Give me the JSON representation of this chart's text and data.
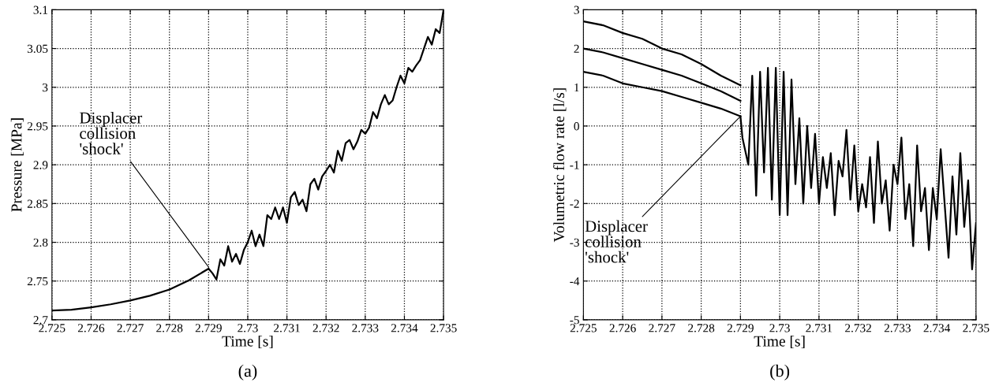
{
  "chart_data": [
    {
      "type": "line",
      "xlabel": "Time [s]",
      "ylabel": "Pressure [MPa]",
      "xlim": [
        2.725,
        2.735
      ],
      "ylim": [
        2.7,
        3.1
      ],
      "xticks": [
        2.725,
        2.726,
        2.727,
        2.728,
        2.729,
        2.73,
        2.731,
        2.732,
        2.733,
        2.734,
        2.735
      ],
      "yticks": [
        2.7,
        2.75,
        2.8,
        2.85,
        2.9,
        2.95,
        3,
        3.05,
        3.1
      ],
      "grid": true,
      "line_style": "solid",
      "annotations": [
        {
          "text": "Displacer\ncollision\n'shock'",
          "x": 2.729,
          "y": 2.768
        },
        "(a)"
      ],
      "series": [
        {
          "color": "#000000",
          "x": [
            2.725,
            2.7255,
            2.726,
            2.7265,
            2.727,
            2.7275,
            2.728,
            2.7285,
            2.729,
            2.7291,
            2.7292,
            2.7293,
            2.7294,
            2.7295,
            2.7296,
            2.7297,
            2.7298,
            2.7299,
            2.73,
            2.7301,
            2.7302,
            2.7303,
            2.7304,
            2.7305,
            2.7306,
            2.7307,
            2.7308,
            2.7309,
            2.731,
            2.7311,
            2.7312,
            2.7313,
            2.7314,
            2.7315,
            2.7316,
            2.7317,
            2.7318,
            2.7319,
            2.732,
            2.7321,
            2.7322,
            2.7323,
            2.7324,
            2.7325,
            2.7326,
            2.7327,
            2.7328,
            2.7329,
            2.733,
            2.7331,
            2.7332,
            2.7333,
            2.7334,
            2.7335,
            2.7336,
            2.7337,
            2.7338,
            2.7339,
            2.734,
            2.7341,
            2.7342,
            2.7343,
            2.7344,
            2.7345,
            2.7346,
            2.7347,
            2.7348,
            2.7349,
            2.735
          ],
          "values": [
            2.712,
            2.713,
            2.716,
            2.72,
            2.725,
            2.731,
            2.739,
            2.751,
            2.766,
            2.76,
            2.752,
            2.778,
            2.77,
            2.795,
            2.775,
            2.785,
            2.772,
            2.79,
            2.8,
            2.815,
            2.795,
            2.81,
            2.795,
            2.835,
            2.83,
            2.845,
            2.83,
            2.845,
            2.825,
            2.858,
            2.865,
            2.848,
            2.855,
            2.84,
            2.875,
            2.882,
            2.868,
            2.885,
            2.892,
            2.9,
            2.89,
            2.918,
            2.905,
            2.928,
            2.932,
            2.92,
            2.93,
            2.945,
            2.94,
            2.948,
            2.968,
            2.96,
            2.978,
            2.99,
            2.978,
            2.983,
            3.0,
            3.015,
            3.005,
            3.025,
            3.02,
            3.028,
            3.035,
            3.05,
            3.065,
            3.055,
            3.075,
            3.07,
            3.1
          ]
        }
      ]
    },
    {
      "type": "line",
      "xlabel": "Time [s]",
      "ylabel": "Volumetric flow rate [l/s]",
      "xlim": [
        2.725,
        2.735
      ],
      "ylim": [
        -5,
        3
      ],
      "xticks": [
        2.725,
        2.726,
        2.727,
        2.728,
        2.729,
        2.73,
        2.731,
        2.732,
        2.733,
        2.734,
        2.735
      ],
      "yticks": [
        -5,
        -4,
        -3,
        -2,
        -1,
        0,
        1,
        2,
        3
      ],
      "grid": true,
      "line_style": "solid",
      "annotations": [
        {
          "text": "Displacer\ncollision\n'shock'",
          "x": 2.729,
          "y": 0.25
        },
        "(b)"
      ],
      "series": [
        {
          "color": "#000000",
          "x": [
            2.725,
            2.7255,
            2.726,
            2.7265,
            2.727,
            2.7275,
            2.728,
            2.7285,
            2.729
          ],
          "values": [
            2.7,
            2.6,
            2.4,
            2.25,
            2.0,
            1.85,
            1.6,
            1.3,
            1.05
          ]
        },
        {
          "color": "#000000",
          "x": [
            2.725,
            2.7255,
            2.726,
            2.7265,
            2.727,
            2.7275,
            2.728,
            2.7285,
            2.729
          ],
          "values": [
            2.0,
            1.9,
            1.75,
            1.6,
            1.45,
            1.3,
            1.1,
            0.9,
            0.65
          ]
        },
        {
          "color": "#000000",
          "x": [
            2.725,
            2.7255,
            2.726,
            2.7265,
            2.727,
            2.7275,
            2.728,
            2.7285,
            2.729
          ],
          "values": [
            1.4,
            1.3,
            1.1,
            1.0,
            0.9,
            0.75,
            0.6,
            0.45,
            0.25
          ]
        },
        {
          "color": "#000000",
          "x": [
            2.729,
            2.72905,
            2.7292,
            2.7293,
            2.7294,
            2.7295,
            2.7296,
            2.7297,
            2.7298,
            2.7299,
            2.73,
            2.7301,
            2.7302,
            2.7303,
            2.7304,
            2.7305,
            2.7306,
            2.7307,
            2.7308,
            2.7309,
            2.731,
            2.7311,
            2.7312,
            2.7313,
            2.7314,
            2.7315,
            2.7316,
            2.7317,
            2.7318,
            2.7319,
            2.732,
            2.7321,
            2.7322,
            2.7323,
            2.7324,
            2.7325,
            2.7326,
            2.7327,
            2.7328,
            2.7329,
            2.733,
            2.7331,
            2.7332,
            2.7333,
            2.7334,
            2.7335,
            2.7336,
            2.7337,
            2.7338,
            2.7339,
            2.734,
            2.7341,
            2.7342,
            2.7343,
            2.7344,
            2.7345,
            2.7346,
            2.7347,
            2.7348,
            2.7349,
            2.735
          ],
          "values": [
            0.25,
            -0.3,
            -1.0,
            1.3,
            -1.8,
            1.4,
            -1.2,
            1.5,
            -1.9,
            1.5,
            -2.3,
            1.4,
            -2.3,
            1.2,
            -1.5,
            0.2,
            -2.0,
            0.0,
            -1.6,
            -0.2,
            -2.0,
            -0.8,
            -1.6,
            -0.7,
            -2.3,
            -0.9,
            -1.3,
            -0.1,
            -1.9,
            -0.5,
            -2.2,
            -1.5,
            -2.1,
            -0.8,
            -2.5,
            -0.4,
            -2.0,
            -1.4,
            -2.7,
            -1.0,
            -1.5,
            -0.3,
            -2.4,
            -1.5,
            -3.1,
            -0.5,
            -2.2,
            -1.6,
            -3.2,
            -1.6,
            -2.4,
            -0.6,
            -2.0,
            -3.4,
            -1.3,
            -2.8,
            -0.7,
            -2.6,
            -1.4,
            -3.7,
            -2.5
          ]
        }
      ]
    }
  ]
}
